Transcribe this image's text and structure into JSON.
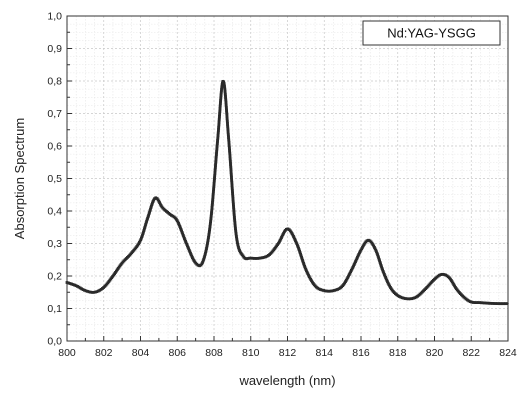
{
  "chart_data": {
    "type": "line",
    "xlabel": "wavelength (nm)",
    "ylabel": "Absorption Spectrum",
    "xlim": [
      800,
      824
    ],
    "ylim": [
      0.0,
      1.0
    ],
    "x_ticks": [
      "800",
      "802",
      "804",
      "806",
      "808",
      "810",
      "812",
      "814",
      "816",
      "818",
      "820",
      "822",
      "824"
    ],
    "y_ticks": [
      "0,0",
      "0,1",
      "0,2",
      "0,3",
      "0,4",
      "0,5",
      "0,6",
      "0,7",
      "0,8",
      "0,9",
      "1,0"
    ],
    "grid": true,
    "minor_grid": true,
    "legend_position": "top-right",
    "line_color": "#2a2a2a",
    "series": [
      {
        "name": "Nd:YAG-YSGG",
        "x": [
          800.0,
          800.5,
          801.0,
          801.5,
          802.0,
          802.5,
          803.0,
          803.5,
          804.0,
          804.4,
          804.8,
          805.2,
          805.6,
          806.0,
          806.5,
          807.0,
          807.4,
          807.8,
          808.2,
          808.5,
          808.8,
          809.2,
          809.6,
          810.0,
          810.5,
          811.0,
          811.5,
          812.0,
          812.5,
          813.0,
          813.5,
          814.0,
          814.5,
          815.0,
          815.5,
          816.0,
          816.4,
          816.8,
          817.2,
          817.6,
          818.0,
          818.5,
          819.0,
          819.5,
          820.0,
          820.4,
          820.8,
          821.2,
          821.6,
          822.0,
          822.5,
          823.0,
          823.5,
          824.0
        ],
        "y": [
          0.18,
          0.17,
          0.155,
          0.15,
          0.165,
          0.2,
          0.24,
          0.27,
          0.31,
          0.38,
          0.44,
          0.41,
          0.39,
          0.37,
          0.3,
          0.24,
          0.245,
          0.36,
          0.62,
          0.8,
          0.62,
          0.33,
          0.26,
          0.255,
          0.255,
          0.265,
          0.3,
          0.345,
          0.3,
          0.22,
          0.17,
          0.155,
          0.155,
          0.17,
          0.22,
          0.28,
          0.31,
          0.28,
          0.215,
          0.165,
          0.14,
          0.13,
          0.135,
          0.16,
          0.19,
          0.205,
          0.195,
          0.16,
          0.135,
          0.12,
          0.118,
          0.116,
          0.115,
          0.115
        ]
      }
    ]
  }
}
